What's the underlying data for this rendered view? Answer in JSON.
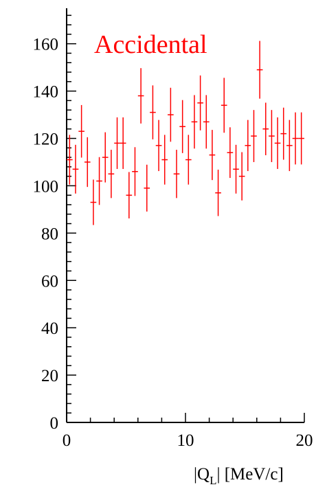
{
  "chart_data": {
    "type": "scatter",
    "title": "Accidental",
    "xlabel": "|Q_L| [MeV/c]",
    "xlabel_main": "|Q",
    "xlabel_sub": "L",
    "xlabel_rest": "| [MeV/c]",
    "ylabel": "",
    "xlim": [
      0,
      20
    ],
    "ylim": [
      0,
      175
    ],
    "xticks": [
      0,
      10,
      20
    ],
    "yticks": [
      0,
      20,
      40,
      60,
      80,
      100,
      120,
      140,
      160
    ],
    "grid": false,
    "legend": "none",
    "colors": {
      "data": "#ff0000",
      "axes": "#000000",
      "title": "#ff0000"
    },
    "bin_width": 0.5,
    "series": [
      {
        "x": [
          0.25,
          0.75,
          1.25,
          1.75,
          2.25,
          2.75,
          3.25,
          3.75,
          4.25,
          4.75,
          5.25,
          5.75,
          6.25,
          6.75,
          7.25,
          7.75,
          8.25,
          8.75,
          9.25,
          9.75,
          10.25,
          10.75,
          11.25,
          11.75,
          12.25,
          12.75,
          13.25,
          13.75,
          14.25,
          14.75,
          15.25,
          15.75,
          16.25,
          16.75,
          17.25,
          17.75,
          18.25,
          18.75,
          19.25,
          19.75
        ],
        "y": [
          111,
          107,
          123,
          110,
          93,
          102,
          112,
          105,
          118,
          118,
          96,
          106,
          138,
          99,
          131,
          117,
          111,
          130,
          105,
          125,
          111,
          127,
          135,
          127,
          113,
          97,
          134,
          114,
          107,
          104,
          117,
          121,
          149,
          124,
          121,
          118,
          122,
          117,
          120,
          120
        ],
        "yerr": [
          10.5,
          10.3,
          11.1,
          10.5,
          9.6,
          10.1,
          10.6,
          10.2,
          10.9,
          10.9,
          9.8,
          10.3,
          11.7,
          9.9,
          11.4,
          10.8,
          10.5,
          11.4,
          10.2,
          11.2,
          10.5,
          11.3,
          11.6,
          11.3,
          10.6,
          9.8,
          11.6,
          10.7,
          10.3,
          10.2,
          10.8,
          11.0,
          12.2,
          11.1,
          11.0,
          10.9,
          11.0,
          10.8,
          11.0,
          11.0
        ]
      }
    ]
  }
}
